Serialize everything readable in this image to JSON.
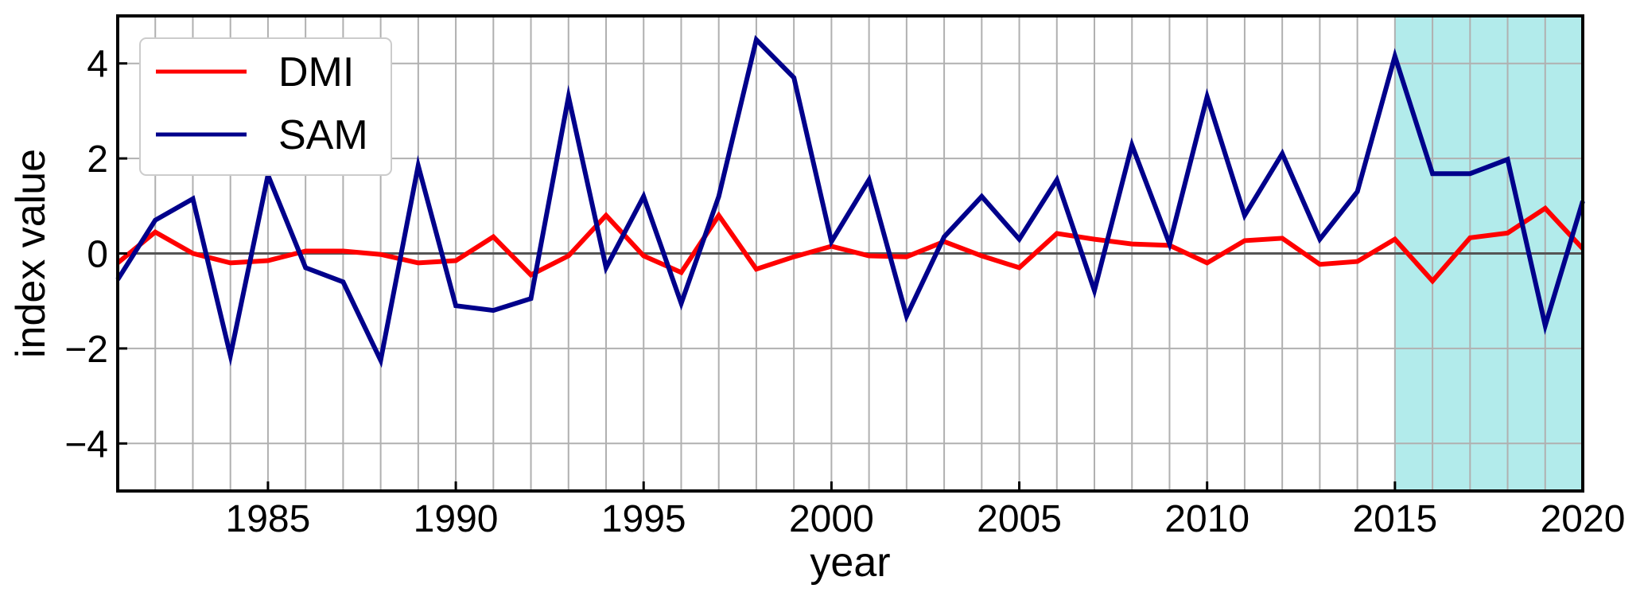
{
  "chart_data": {
    "type": "line",
    "title": "",
    "xlabel": "year",
    "ylabel": "index value",
    "xlim": [
      1981,
      2020
    ],
    "ylim": [
      -5,
      5
    ],
    "xticks": [
      1985,
      1990,
      1995,
      2000,
      2005,
      2010,
      2015,
      2020
    ],
    "yticks": [
      -4,
      -2,
      0,
      2,
      4
    ],
    "ytick_labels": [
      "−4",
      "−2",
      "0",
      "2",
      "4"
    ],
    "grid": true,
    "grid_x_step": 1,
    "zero_line": true,
    "legend_position": "top-left",
    "highlight": {
      "x_start": 2015,
      "x_end": 2020,
      "color": "#b2ebeb"
    },
    "x": [
      1981,
      1982,
      1983,
      1984,
      1985,
      1986,
      1987,
      1988,
      1989,
      1990,
      1991,
      1992,
      1993,
      1994,
      1995,
      1996,
      1997,
      1998,
      1999,
      2000,
      2001,
      2002,
      2003,
      2004,
      2005,
      2006,
      2007,
      2008,
      2009,
      2010,
      2011,
      2012,
      2013,
      2014,
      2015,
      2016,
      2017,
      2018,
      2019,
      2020
    ],
    "series": [
      {
        "name": "DMI",
        "color": "#ff0000",
        "values": [
          -0.2,
          0.45,
          0.0,
          -0.2,
          -0.15,
          0.05,
          0.05,
          -0.02,
          -0.2,
          -0.15,
          0.35,
          -0.45,
          -0.05,
          0.8,
          -0.05,
          -0.4,
          0.8,
          -0.33,
          -0.07,
          0.15,
          -0.05,
          -0.07,
          0.25,
          -0.05,
          -0.3,
          0.42,
          0.3,
          0.2,
          0.17,
          -0.2,
          0.27,
          0.32,
          -0.23,
          -0.17,
          0.3,
          -0.58,
          0.33,
          0.43,
          0.95,
          0.1
        ]
      },
      {
        "name": "SAM",
        "color": "#00008b",
        "values": [
          -0.55,
          0.7,
          1.15,
          -2.15,
          1.65,
          -0.3,
          -0.6,
          -2.25,
          1.85,
          -1.1,
          -1.2,
          -0.95,
          3.3,
          -0.3,
          1.2,
          -1.05,
          1.2,
          4.5,
          3.7,
          0.25,
          1.55,
          -1.32,
          0.35,
          1.2,
          0.3,
          1.55,
          -0.78,
          2.28,
          0.2,
          3.3,
          0.8,
          2.1,
          0.3,
          1.3,
          4.15,
          1.68,
          1.68,
          1.98,
          -1.52,
          1.1
        ]
      }
    ]
  }
}
